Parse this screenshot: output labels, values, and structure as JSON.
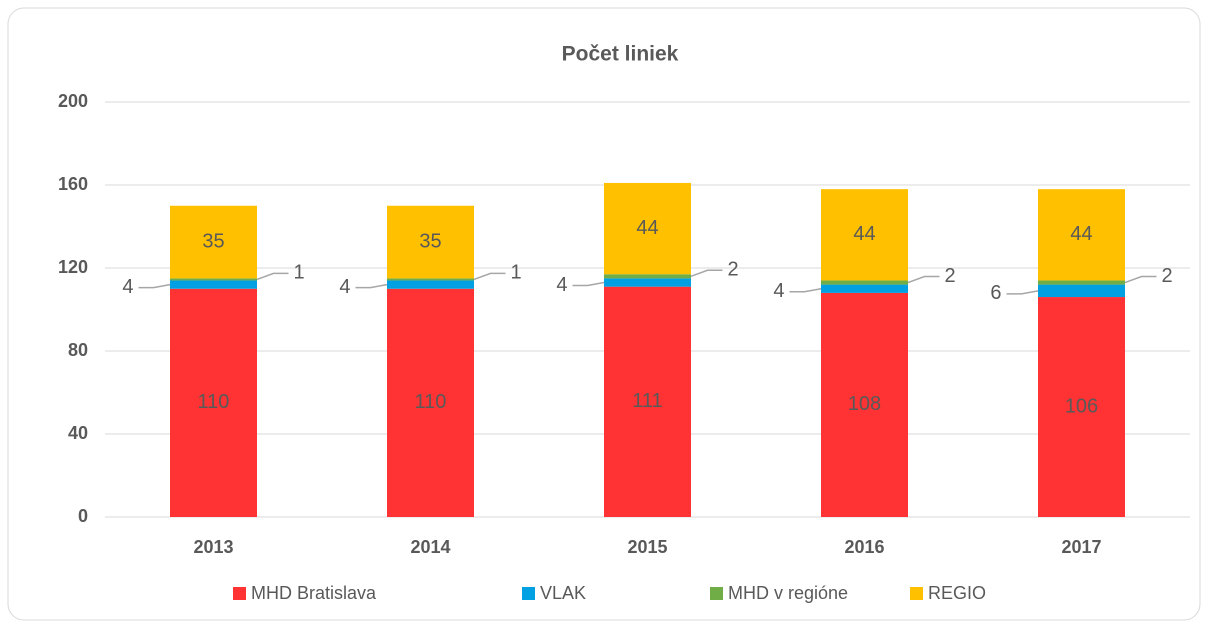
{
  "chart_data": {
    "type": "bar",
    "stacked": true,
    "title": "Počet liniek",
    "categories": [
      "2013",
      "2014",
      "2015",
      "2016",
      "2017"
    ],
    "series": [
      {
        "name": "MHD Bratislava",
        "color": "#ff3333",
        "values": [
          110,
          110,
          111,
          108,
          106
        ]
      },
      {
        "name": "VLAK",
        "color": "#00a0e3",
        "values": [
          4,
          4,
          4,
          4,
          6
        ]
      },
      {
        "name": "MHD v regióne",
        "color": "#70ad47",
        "values": [
          1,
          1,
          2,
          2,
          2
        ]
      },
      {
        "name": "REGIO",
        "color": "#ffc000",
        "values": [
          35,
          35,
          44,
          44,
          44
        ]
      }
    ],
    "ylim": [
      0,
      200
    ],
    "yticks": [
      0,
      40,
      80,
      120,
      160,
      200
    ],
    "grid": true,
    "legend": "bottom"
  }
}
